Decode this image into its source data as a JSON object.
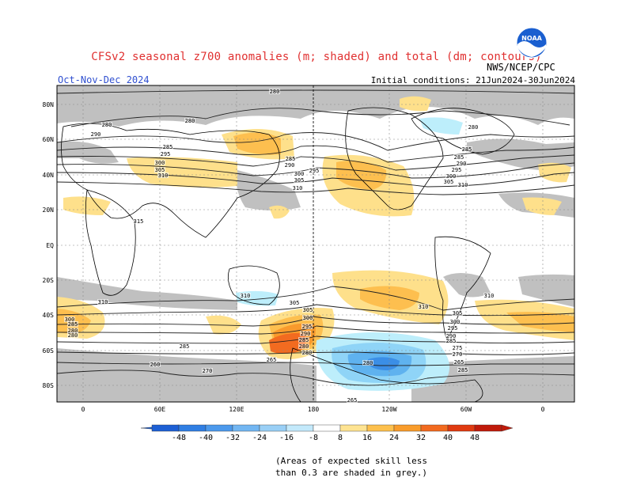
{
  "header": {
    "title": "CFSv2 seasonal z700 anomalies (m; shaded) and total (dm; contours)",
    "season": "Oct-Nov-Dec 2024",
    "initial_conditions": "Initial conditions: 21Jun2024-30Jun2024",
    "agency": "NWS/NCEP/CPC",
    "logo_text": "NOAA"
  },
  "map": {
    "lat_labels": [
      "80N",
      "60N",
      "40N",
      "20N",
      "EQ",
      "20S",
      "40S",
      "60S",
      "80S"
    ],
    "lon_labels": [
      "0",
      "60E",
      "120E",
      "180",
      "120W",
      "60W",
      "0"
    ],
    "contour_labels": [
      "280",
      "280",
      "280",
      "285",
      "290",
      "285",
      "295",
      "300",
      "305",
      "310",
      "285",
      "290",
      "295",
      "300",
      "305",
      "310",
      "280",
      "285",
      "290",
      "295",
      "300",
      "305",
      "310",
      "315",
      "310",
      "305",
      "310",
      "310",
      "310",
      "305",
      "300",
      "295",
      "290",
      "285",
      "280",
      "305",
      "300",
      "295",
      "290",
      "285",
      "280",
      "275",
      "270",
      "265",
      "300",
      "285",
      "280",
      "285",
      "280",
      "270",
      "265",
      "260",
      "285",
      "265",
      "280"
    ],
    "colors": {
      "grey": "#c0c0c0",
      "land_line": "#000000",
      "pos_8": "#fee08b",
      "pos_16": "#fdbf4f",
      "pos_24": "#f99a2c",
      "pos_32": "#f26b20",
      "pos_40": "#e23d12",
      "neg_8": "#bdeefb",
      "neg_16": "#8fd4f7",
      "neg_24": "#5fb2ef",
      "neg_32": "#3b8ee6"
    }
  },
  "colorbar": {
    "labels": [
      "-48",
      "-40",
      "-32",
      "-24",
      "-16",
      "-8",
      "8",
      "16",
      "24",
      "32",
      "40",
      "48"
    ],
    "colors": [
      "#1d5fd4",
      "#2f7ee3",
      "#4c99ec",
      "#72b6f2",
      "#99cff6",
      "#c3e9fb",
      "#ffffff",
      "#fee391",
      "#fdc04d",
      "#f99c2b",
      "#f26a1f",
      "#e03a10",
      "#c01a0a"
    ]
  },
  "footnote": {
    "line1": "(Areas of expected skill less",
    "line2": "than 0.3 are shaded in grey.)"
  }
}
